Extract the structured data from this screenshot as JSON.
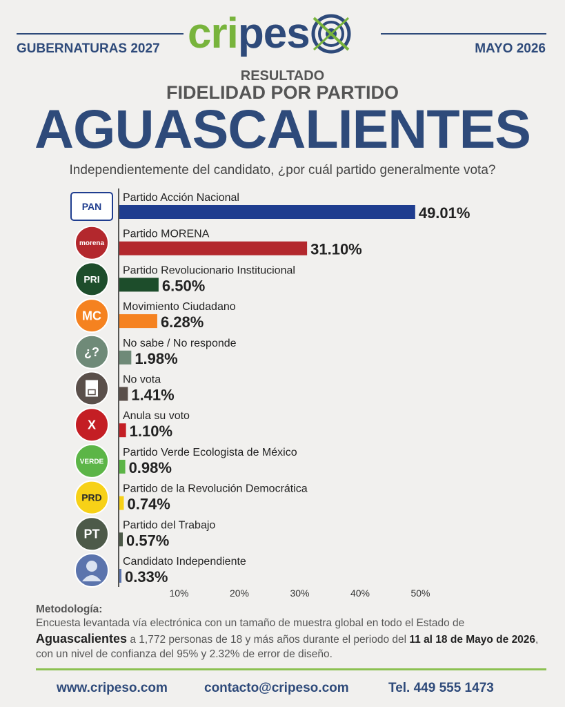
{
  "header": {
    "logo_text_green": "cri",
    "logo_text_blue": "pes",
    "left_label": "GUBERNATURAS 2027",
    "right_label": "MAYO 2026",
    "kicker": "RESULTADO",
    "subtitle": "FIDELIDAD POR PARTIDO",
    "state": "AGUASCALIENTES",
    "question": "Independientemente del candidato, ¿por cuál partido generalmente vota?"
  },
  "chart_data": {
    "type": "bar",
    "orientation": "horizontal",
    "categories": [
      "Partido Acción Nacional",
      "Partido MORENA",
      "Partido Revolucionario Institucional",
      "Movimiento Ciudadano",
      "No sabe / No responde",
      "No vota",
      "Anula su voto",
      "Partido Verde Ecologista de México",
      "Partido de la Revolución Democrática",
      "Partido del Trabajo",
      "Candidato Independiente"
    ],
    "values": [
      49.01,
      31.1,
      6.5,
      6.28,
      1.98,
      1.41,
      1.1,
      0.98,
      0.74,
      0.57,
      0.33
    ],
    "value_labels": [
      "49.01%",
      "31.10%",
      "6.50%",
      "6.28%",
      "1.98%",
      "1.41%",
      "1.10%",
      "0.98%",
      "0.74%",
      "0.57%",
      "0.33%"
    ],
    "colors": [
      "#1f3d8f",
      "#b3282d",
      "#1d4d2b",
      "#f58220",
      "#6f8a78",
      "#5a4f4a",
      "#c41e24",
      "#5cb547",
      "#f7d117",
      "#4d5a49",
      "#5b74ad"
    ],
    "icons": [
      "pan-logo",
      "morena-logo",
      "pri-logo",
      "mc-logo",
      "question-icon",
      "ballot-icon",
      "x-icon",
      "verde-logo",
      "prd-logo",
      "pt-logo",
      "person-icon"
    ],
    "icon_texts": [
      "PAN",
      "morena",
      "PRI",
      "MC",
      "¿?",
      "",
      "X",
      "VERDE",
      "PRD",
      "PT",
      ""
    ],
    "xticks": [
      10,
      20,
      30,
      40,
      50
    ],
    "xtick_labels": [
      "10%",
      "20%",
      "30%",
      "40%",
      "50%"
    ],
    "xlim": [
      0,
      52
    ],
    "grid": false,
    "legend": "none"
  },
  "methodology": {
    "heading": "Metodología:",
    "line1": "Encuesta levantada vía electrónica con un tamaño de muestra global en todo el Estado de",
    "state": "Aguascalientes",
    "part2": " a 1,772 personas de 18 y más años durante el periodo del ",
    "period": "11 al 18 de Mayo de 2026",
    "part3": ", con un nivel de confianza del 95% y 2.32% de error de diseño."
  },
  "footer": {
    "website": "www.cripeso.com",
    "email": "contacto@cripeso.com",
    "phone": "Tel. 449 555 1473"
  }
}
